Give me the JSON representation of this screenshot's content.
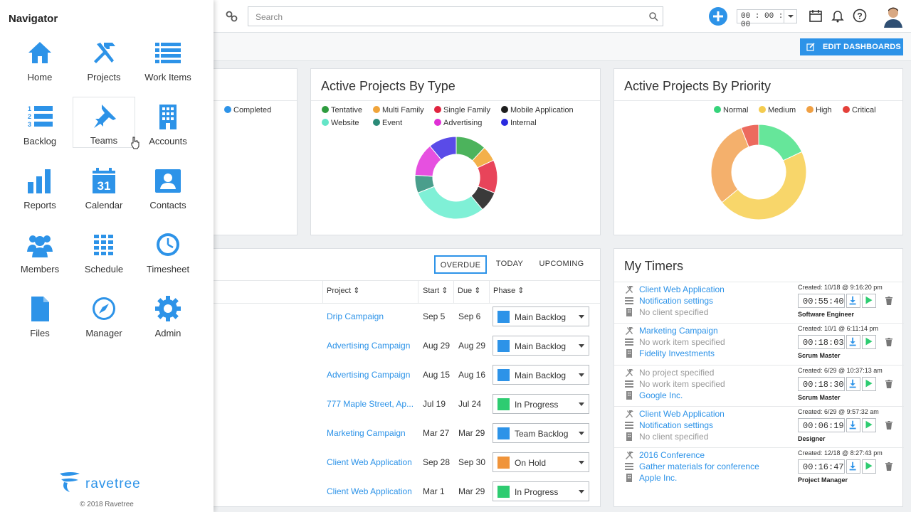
{
  "topbar": {
    "search_placeholder": "Search",
    "timer_value": "00 : 00 : 00",
    "edit_dashboards": "EDIT DASHBOARDS"
  },
  "colors": {
    "accent": "#2d93e8",
    "play": "#2ecc71"
  },
  "card_status": {
    "legend": [
      {
        "label": "Completed",
        "color": "#2d93e8"
      }
    ]
  },
  "card_type": {
    "title": "Active Projects By Type",
    "legend": [
      {
        "label": "Tentative",
        "color": "#2e9b3e"
      },
      {
        "label": "Multi Family",
        "color": "#f0a43a"
      },
      {
        "label": "Single Family",
        "color": "#e0243f"
      },
      {
        "label": "Mobile Application",
        "color": "#1d1d1d"
      },
      {
        "label": "Website",
        "color": "#64e5c7"
      },
      {
        "label": "Event",
        "color": "#2a8a77"
      },
      {
        "label": "Advertising",
        "color": "#e030d6"
      },
      {
        "label": "Internal",
        "color": "#2a2adf"
      }
    ]
  },
  "card_priority": {
    "title": "Active Projects By Priority",
    "legend": [
      {
        "label": "Normal",
        "color": "#35d37a"
      },
      {
        "label": "Medium",
        "color": "#f4cc4f"
      },
      {
        "label": "High",
        "color": "#f0a043"
      },
      {
        "label": "Critical",
        "color": "#e4403a"
      }
    ]
  },
  "chart_data": [
    {
      "type": "pie",
      "title": "Active Projects By Type",
      "categories": [
        "Tentative",
        "Multi Family",
        "Single Family",
        "Mobile Application",
        "Website",
        "Event",
        "Advertising",
        "Internal"
      ],
      "values": [
        12,
        6,
        13,
        8,
        30,
        7,
        13,
        11
      ],
      "colors": [
        "#4cb35c",
        "#f3b04a",
        "#e8445a",
        "#3a3a3a",
        "#7ff0d6",
        "#4a9e8c",
        "#e650e0",
        "#5a4be8"
      ]
    },
    {
      "type": "pie",
      "title": "Active Projects By Priority",
      "categories": [
        "Normal",
        "Medium",
        "High",
        "Critical"
      ],
      "values": [
        18,
        46,
        30,
        6
      ],
      "colors": [
        "#66e69a",
        "#f8d66a",
        "#f4b06c",
        "#ec6a5e"
      ]
    }
  ],
  "tasks": {
    "tabs": [
      "OVERDUE",
      "TODAY",
      "UPCOMING"
    ],
    "columns": [
      "Project",
      "Start",
      "Due",
      "Phase"
    ],
    "rows": [
      {
        "project": "Drip Campaign",
        "start": "Sep 5",
        "due": "Sep 6",
        "phase": "Main Backlog",
        "phase_color": "#2d93e8"
      },
      {
        "project": "Advertising Campaign",
        "start": "Aug 29",
        "due": "Aug 29",
        "phase": "Main Backlog",
        "phase_color": "#2d93e8"
      },
      {
        "project": "Advertising Campaign",
        "start": "Aug 15",
        "due": "Aug 16",
        "phase": "Main Backlog",
        "phase_color": "#2d93e8"
      },
      {
        "project": "777 Maple Street, Ap...",
        "start": "Jul 19",
        "due": "Jul 24",
        "phase": "In Progress",
        "phase_color": "#2ecc71"
      },
      {
        "project": "Marketing Campaign",
        "start": "Mar 27",
        "due": "Mar 29",
        "phase": "Team Backlog",
        "phase_color": "#2d93e8"
      },
      {
        "project": "Client Web Application",
        "start": "Sep 28",
        "due": "Sep 30",
        "phase": "On Hold",
        "phase_color": "#f0943a"
      },
      {
        "project": "Client Web Application",
        "start": "Mar 1",
        "due": "Mar 29",
        "phase": "In Progress",
        "phase_color": "#2ecc71"
      }
    ]
  },
  "timers": {
    "title": "My Timers",
    "rows": [
      {
        "project": "Client Web Application",
        "project_muted": false,
        "item": "Notification settings",
        "item_muted": false,
        "client": "No client specified",
        "client_muted": true,
        "created": "Created: 10/18 @ 9:16:20 pm",
        "time": "00:55:40",
        "role": "Software Engineer"
      },
      {
        "project": "Marketing Campaign",
        "project_muted": false,
        "item": "No work item specified",
        "item_muted": true,
        "client": "Fidelity Investments",
        "client_muted": false,
        "created": "Created: 10/1 @ 6:11:14 pm",
        "time": "00:18:03",
        "role": "Scrum Master"
      },
      {
        "project": "No project specified",
        "project_muted": true,
        "item": "No work item specified",
        "item_muted": true,
        "client": "Google Inc.",
        "client_muted": false,
        "created": "Created: 6/29 @ 10:37:13 am",
        "time": "00:18:30",
        "role": "Scrum Master"
      },
      {
        "project": "Client Web Application",
        "project_muted": false,
        "item": "Notification settings",
        "item_muted": false,
        "client": "No client specified",
        "client_muted": true,
        "created": "Created: 6/29 @ 9:57:32 am",
        "time": "00:06:19",
        "role": "Designer"
      },
      {
        "project": "2016 Conference",
        "project_muted": false,
        "item": "Gather materials for conference",
        "item_muted": false,
        "client": "Apple Inc.",
        "client_muted": false,
        "created": "Created: 12/18 @ 8:27:43 pm",
        "time": "00:16:47",
        "role": "Project Manager"
      }
    ]
  },
  "navigator": {
    "title": "Navigator",
    "items": [
      {
        "label": "Home",
        "icon": "home-icon"
      },
      {
        "label": "Projects",
        "icon": "tools-icon"
      },
      {
        "label": "Work Items",
        "icon": "list-icon"
      },
      {
        "label": "Backlog",
        "icon": "numbered-list-icon"
      },
      {
        "label": "Teams",
        "icon": "pin-icon"
      },
      {
        "label": "Accounts",
        "icon": "building-icon"
      },
      {
        "label": "Reports",
        "icon": "bar-chart-icon"
      },
      {
        "label": "Calendar",
        "icon": "calendar-icon"
      },
      {
        "label": "Contacts",
        "icon": "contact-card-icon"
      },
      {
        "label": "Members",
        "icon": "users-icon"
      },
      {
        "label": "Schedule",
        "icon": "grid-icon"
      },
      {
        "label": "Timesheet",
        "icon": "clock-icon"
      },
      {
        "label": "Files",
        "icon": "file-icon"
      },
      {
        "label": "Manager",
        "icon": "compass-icon"
      },
      {
        "label": "Admin",
        "icon": "gear-icon"
      }
    ],
    "calendar_day": "31",
    "logo_text": "ravetree",
    "copyright": "© 2018 Ravetree"
  }
}
